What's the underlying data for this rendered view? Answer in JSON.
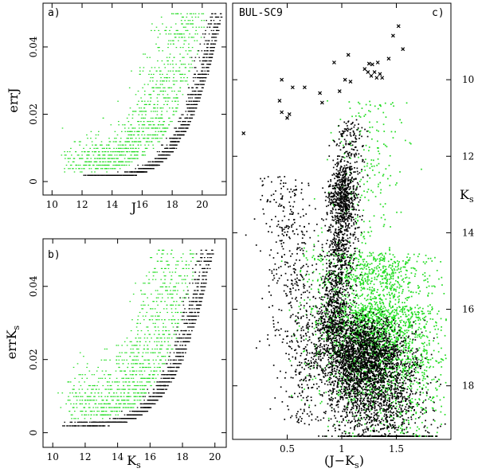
{
  "chart_data": [
    {
      "panel": "a)",
      "type": "scatter",
      "xlabel": "J",
      "ylabel": "errJ",
      "xlim": [
        9.4,
        21.6
      ],
      "ylim": [
        -0.004,
        0.053
      ],
      "xticks": [
        10,
        12,
        14,
        16,
        18,
        20
      ],
      "yticks": [
        0,
        0.02,
        0.04
      ],
      "ytick_labels": [
        "0",
        "0.02",
        "0.04"
      ],
      "series": [
        {
          "color": "#000000",
          "envelope": {
            "x_start": 12.0,
            "x_end": 21.3,
            "err_min": 0.0015,
            "err_max": 0.05,
            "shape": "exponential-rise"
          }
        },
        {
          "color": "#22dd22",
          "envelope": {
            "x_start": 10.5,
            "x_end": 20.3,
            "err_min": 0.003,
            "err_max": 0.05,
            "shape": "exponential-rise"
          }
        }
      ]
    },
    {
      "panel": "b)",
      "type": "scatter",
      "xlabel": "K",
      "xlabel_sub": "s",
      "ylabel": "errK",
      "ylabel_sub": "s",
      "xlim": [
        9.4,
        20.7
      ],
      "ylim": [
        -0.004,
        0.053
      ],
      "xticks": [
        10,
        12,
        14,
        16,
        18,
        20
      ],
      "yticks": [
        0,
        0.02,
        0.04
      ],
      "ytick_labels": [
        "0",
        "0.02",
        "0.04"
      ],
      "series": [
        {
          "color": "#000000",
          "envelope": {
            "x_start": 10.5,
            "x_end": 19.9,
            "err_min": 0.002,
            "err_max": 0.05,
            "shape": "exponential-rise"
          }
        },
        {
          "color": "#22dd22",
          "envelope": {
            "x_start": 10.3,
            "x_end": 19.0,
            "err_min": 0.004,
            "err_max": 0.05,
            "shape": "exponential-rise"
          }
        }
      ]
    },
    {
      "panel": "c)",
      "field": "BUL-SC9",
      "type": "scatter",
      "xlabel": "(J−K",
      "xlabel_sub": "s",
      "xlabel_end": ")",
      "ylabel": "K",
      "ylabel_sub": "s",
      "xlim": [
        0,
        2.0
      ],
      "ylim": [
        19.4,
        8.0
      ],
      "y_inverted": true,
      "xticks": [
        0.5,
        1,
        1.5
      ],
      "xtick_labels": [
        "0.5",
        "1",
        "1.5"
      ],
      "yticks": [
        10,
        12,
        14,
        16,
        18
      ],
      "series": [
        {
          "marker": "cross",
          "color": "#000000",
          "points": [
            [
              1.52,
              8.6
            ],
            [
              1.47,
              8.85
            ],
            [
              1.56,
              9.2
            ],
            [
              1.43,
              9.45
            ],
            [
              1.33,
              9.55
            ],
            [
              1.25,
              9.58
            ],
            [
              1.06,
              9.35
            ],
            [
              0.93,
              9.55
            ],
            [
              1.28,
              9.6
            ],
            [
              1.21,
              9.72
            ],
            [
              1.24,
              9.8
            ],
            [
              1.3,
              9.8
            ],
            [
              1.35,
              9.85
            ],
            [
              1.27,
              9.9
            ],
            [
              1.32,
              9.95
            ],
            [
              1.37,
              9.95
            ],
            [
              1.03,
              10.0
            ],
            [
              1.08,
              10.05
            ],
            [
              0.45,
              10.0
            ],
            [
              0.55,
              10.2
            ],
            [
              0.66,
              10.2
            ],
            [
              0.8,
              10.35
            ],
            [
              0.98,
              10.3
            ],
            [
              0.43,
              10.55
            ],
            [
              0.45,
              10.85
            ],
            [
              0.82,
              10.6
            ],
            [
              0.52,
              10.9
            ],
            [
              0.5,
              11.0
            ],
            [
              0.1,
              11.4
            ]
          ]
        },
        {
          "marker": "dot",
          "color": "#000000",
          "cloud": {
            "rgb_color_center": 1.02,
            "rgb_top": 10.4,
            "red_clump_ks": 13.0,
            "dense_center": [
              1.2,
              18.2
            ],
            "color_range": [
              0.2,
              1.95
            ]
          }
        },
        {
          "marker": "dot",
          "color": "#22dd22",
          "cloud": {
            "dense_center": [
              1.35,
              17.4
            ],
            "color_range": [
              0.2,
              1.95
            ]
          }
        }
      ]
    }
  ]
}
